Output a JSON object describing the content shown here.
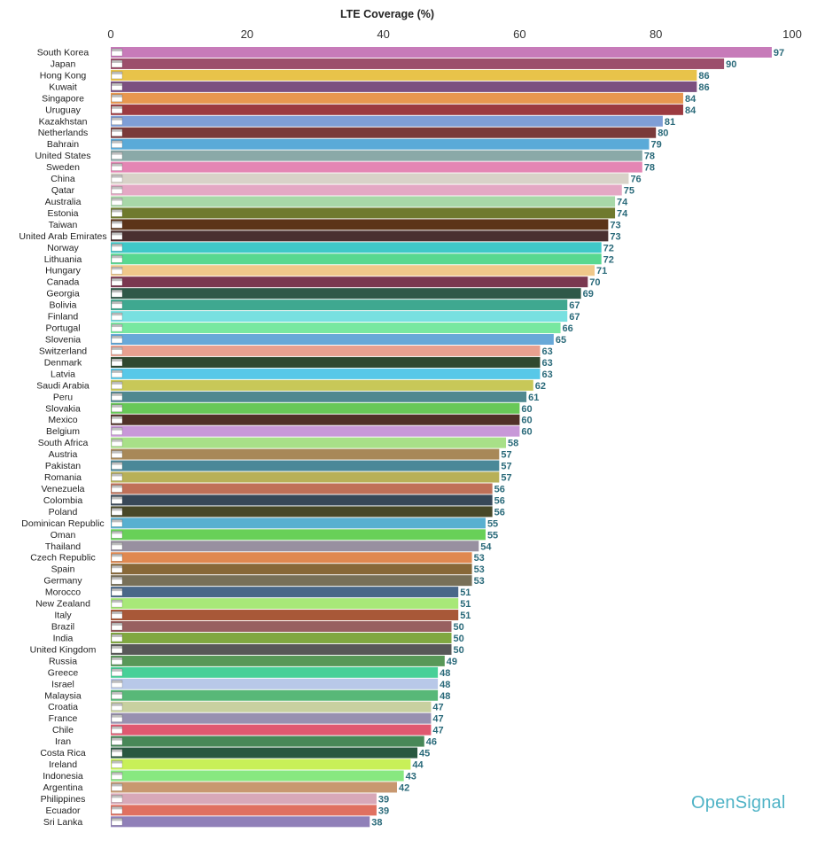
{
  "chart_data": {
    "type": "bar",
    "orientation": "horizontal",
    "title": "LTE Coverage (%)",
    "xlim": [
      0,
      100
    ],
    "xticks": [
      "0",
      "20",
      "40",
      "60",
      "80",
      "100"
    ],
    "grid": false,
    "categories": [
      "South Korea",
      "Japan",
      "Hong Kong",
      "Kuwait",
      "Singapore",
      "Uruguay",
      "Kazakhstan",
      "Netherlands",
      "Bahrain",
      "United States",
      "Sweden",
      "China",
      "Qatar",
      "Australia",
      "Estonia",
      "Taiwan",
      "United Arab Emirates",
      "Norway",
      "Lithuania",
      "Hungary",
      "Canada",
      "Georgia",
      "Bolivia",
      "Finland",
      "Portugal",
      "Slovenia",
      "Switzerland",
      "Denmark",
      "Latvia",
      "Saudi Arabia",
      "Peru",
      "Slovakia",
      "Mexico",
      "Belgium",
      "South Africa",
      "Austria",
      "Pakistan",
      "Romania",
      "Venezuela",
      "Colombia",
      "Poland",
      "Dominican Republic",
      "Oman",
      "Thailand",
      "Czech Republic",
      "Spain",
      "Germany",
      "Morocco",
      "New Zealand",
      "Italy",
      "Brazil",
      "India",
      "United Kingdom",
      "Russia",
      "Greece",
      "Israel",
      "Malaysia",
      "Croatia",
      "France",
      "Chile",
      "Iran",
      "Costa Rica",
      "Ireland",
      "Indonesia",
      "Argentina",
      "Philippines",
      "Ecuador",
      "Sri Lanka"
    ],
    "values": [
      97,
      90,
      86,
      86,
      84,
      84,
      81,
      80,
      79,
      78,
      78,
      76,
      75,
      74,
      74,
      73,
      73,
      72,
      72,
      71,
      70,
      69,
      67,
      67,
      66,
      65,
      63,
      63,
      63,
      62,
      61,
      60,
      60,
      60,
      58,
      57,
      57,
      57,
      56,
      56,
      56,
      55,
      55,
      54,
      53,
      53,
      53,
      51,
      51,
      51,
      50,
      50,
      50,
      49,
      48,
      48,
      48,
      47,
      47,
      47,
      46,
      45,
      44,
      43,
      42,
      39,
      39,
      38
    ],
    "colors": [
      "#c77bb9",
      "#9c4f6c",
      "#e8c34a",
      "#7b5080",
      "#e8974f",
      "#9c3a40",
      "#7f9ed6",
      "#7a3a3a",
      "#5aaad8",
      "#8aa9a8",
      "#e486b4",
      "#d8d2c8",
      "#e4a8c4",
      "#a8d8a8",
      "#6f7a2e",
      "#5c3418",
      "#4a3030",
      "#3fc8c8",
      "#58d890",
      "#f0c88a",
      "#7a3850",
      "#2f5848",
      "#3fa890",
      "#78e0e0",
      "#78e8a0",
      "#68a8d8",
      "#e8a090",
      "#304830",
      "#58c8e8",
      "#c8c858",
      "#508890",
      "#68c858",
      "#503028",
      "#c898d8",
      "#a8e088",
      "#a88858",
      "#4a8898",
      "#b8b058",
      "#c07058",
      "#384858",
      "#484828",
      "#58b0d0",
      "#68d058",
      "#9890a0",
      "#e08850",
      "#886838",
      "#787058",
      "#4a6888",
      "#a8e878",
      "#a85838",
      "#986060",
      "#80a840",
      "#585858",
      "#589858",
      "#48d098",
      "#b8c8e8",
      "#58b878",
      "#c8d0a0",
      "#9890b0",
      "#e05870",
      "#488858",
      "#285840",
      "#c8f058",
      "#88e880",
      "#c89870",
      "#d8a8b8",
      "#e07060",
      "#9080b8"
    ],
    "brand": "OpenSignal"
  }
}
